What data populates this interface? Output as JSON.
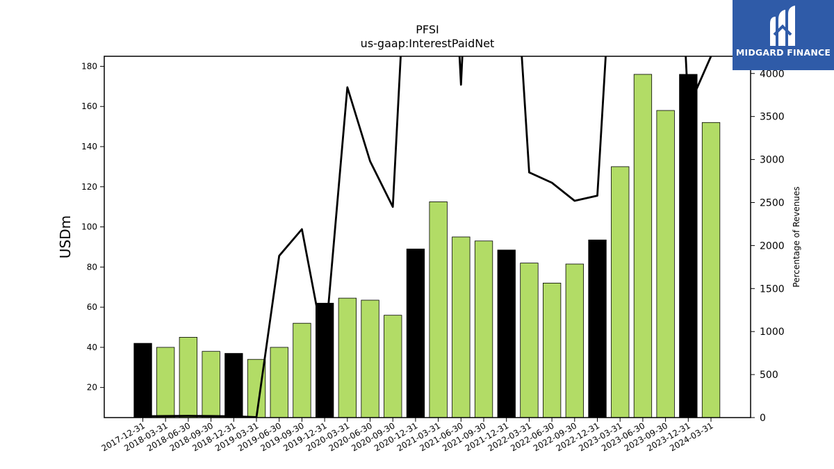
{
  "logo": {
    "text": "MIDGARD FINANCE",
    "icon": "midgard-m-logo-icon",
    "bg_color": "#2f5ba8"
  },
  "chart_data": {
    "type": "bar",
    "title": "PFSI",
    "subtitle": "us-gaap:InterestPaidNet",
    "ylabel": "USDm",
    "ylabel_right": "Percentage of Revenues",
    "ylim": [
      5,
      185
    ],
    "ylim_right": [
      0,
      4200
    ],
    "yticks": [
      20,
      40,
      60,
      80,
      100,
      120,
      140,
      160,
      180
    ],
    "yticks_right": [
      0,
      500,
      1000,
      1500,
      2000,
      2500,
      3000,
      3500,
      4000
    ],
    "categories": [
      "2017-12-31",
      "2018-03-31",
      "2018-06-30",
      "2018-09-30",
      "2018-12-31",
      "2019-03-31",
      "2019-06-30",
      "2019-09-30",
      "2019-12-31",
      "2020-03-31",
      "2020-06-30",
      "2020-09-30",
      "2020-12-31",
      "2021-03-31",
      "2021-06-30",
      "2021-09-30",
      "2021-12-31",
      "2022-03-31",
      "2022-06-30",
      "2022-09-30",
      "2022-12-31",
      "2023-03-31",
      "2023-06-30",
      "2023-09-30",
      "2023-12-31",
      "2024-03-31"
    ],
    "values": [
      42,
      40,
      45,
      38,
      37,
      34,
      40,
      52,
      62,
      64.5,
      63.5,
      56,
      89,
      112.5,
      95,
      93,
      88.5,
      82,
      72,
      81.5,
      93.5,
      130,
      176,
      158,
      176,
      152
    ],
    "annual": [
      true,
      false,
      false,
      false,
      true,
      false,
      false,
      false,
      true,
      false,
      false,
      false,
      true,
      false,
      false,
      false,
      true,
      false,
      false,
      false,
      true,
      false,
      false,
      false,
      true,
      false
    ],
    "line_values": [
      15,
      18,
      20,
      18,
      15,
      5,
      1880,
      2190,
      800,
      3840,
      2980,
      2450,
      7500,
      9000,
      3870,
      9500,
      7000,
      2850,
      2730,
      2520,
      2580,
      7000,
      9500,
      9000,
      3600,
      4200
    ],
    "colors": {
      "annual_bar": "#000000",
      "quarter_bar": "#b2dc66",
      "line": "#000000"
    },
    "grid": false
  }
}
